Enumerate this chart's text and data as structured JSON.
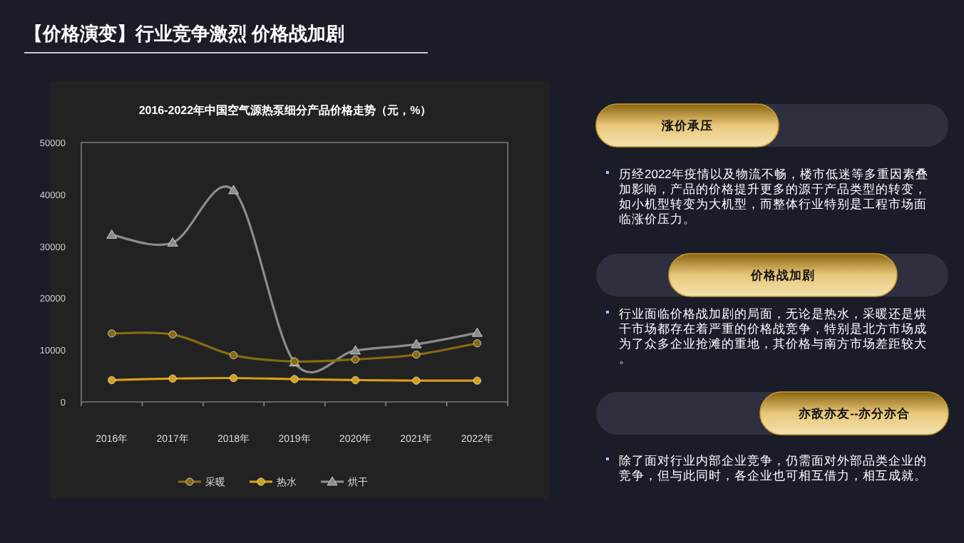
{
  "chart_data": [
    {
      "type": "line",
      "title": "2016-2022年中国空气源热泵细分产品价格走势（元，%）",
      "categories": [
        "2016年",
        "2017年",
        "2018年",
        "2019年",
        "2020年",
        "2021年",
        "2022年"
      ],
      "series": [
        {
          "name": "采暖",
          "color": "#8a6a10",
          "marker": "circle",
          "values": [
            13200,
            13000,
            9000,
            7800,
            8200,
            9100,
            11300
          ]
        },
        {
          "name": "热水",
          "color": "#d4a017",
          "marker": "circle",
          "values": [
            4200,
            4500,
            4600,
            4400,
            4200,
            4100,
            4100
          ]
        },
        {
          "name": "烘干",
          "color": "#8c8c8c",
          "marker": "triangle",
          "values": [
            32200,
            30700,
            40800,
            7600,
            9900,
            11100,
            13300
          ]
        }
      ],
      "ylim": [
        0,
        50000
      ],
      "yticks": [
        0,
        10000,
        20000,
        30000,
        40000,
        50000
      ],
      "grid": false,
      "legend": "bottom",
      "line_style": "solid"
    },
    {
      "type": "other",
      "title": "【价格演变】行业竞争激烈 价格战加剧",
      "annotations": [
        "涨价承压",
        "历经2022年疫情以及物流不畅，楼市低迷等多重因素叠加影响，产品的价格提升更多的源于产品类型的转变，如小机型转变为大机型，而整体行业特别是工程市场面临涨价压力。",
        "价格战加剧",
        "行业面临价格战加剧的局面，无论是热水，采暖还是烘干市场都存在着严重的价格战竞争，特别是北方市场成为了众多企业抢滩的重地，其价格与南方市场差距较大。",
        "亦敌亦友--亦分亦合",
        "除了面对行业内部企业竞争，仍需面对外部品类企业的竞争，但与此同时，各企业也可相互借力，相互成就。"
      ]
    }
  ]
}
